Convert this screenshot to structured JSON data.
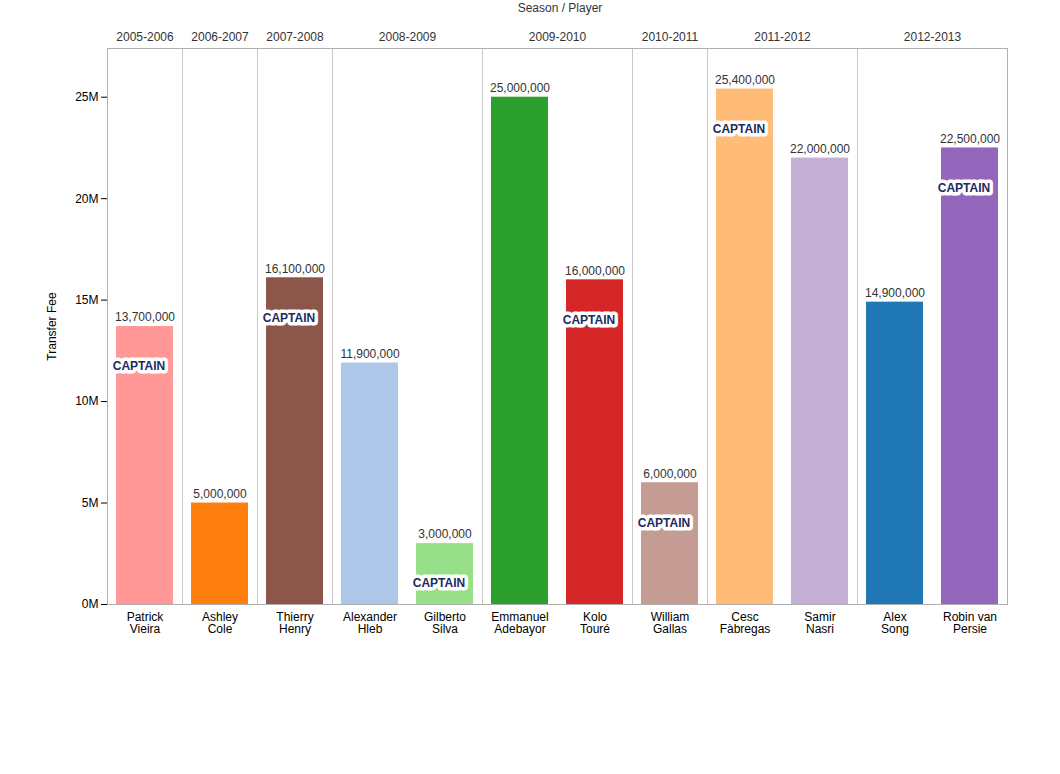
{
  "chart_data": {
    "type": "bar",
    "x_label": "Season / Player",
    "y_label": "Transfer Fee",
    "categories": [
      "Patrick Vieira",
      "Ashley Cole",
      "Thierry Henry",
      "Alexander Hleb",
      "Gilberto Silva",
      "Emmanuel Adebayor",
      "Kolo Touré",
      "William Gallas",
      "Cesc Fàbregas",
      "Samir Nasri",
      "Alex Song",
      "Robin van Persie"
    ],
    "seasons": [
      "2005-2006",
      "2006-2007",
      "2007-2008",
      "2008-2009",
      "2008-2009",
      "2009-2010",
      "2009-2010",
      "2010-2011",
      "2011-2012",
      "2011-2012",
      "2012-2013",
      "2012-2013"
    ],
    "values": [
      13700000,
      5000000,
      16100000,
      11900000,
      3000000,
      25000000,
      16000000,
      6000000,
      25400000,
      22000000,
      14900000,
      22500000
    ],
    "value_labels": [
      "13,700,000",
      "5,000,000",
      "16,100,000",
      "11,900,000",
      "3,000,000",
      "25,000,000",
      "16,000,000",
      "6,000,000",
      "25,400,000",
      "22,000,000",
      "14,900,000",
      "22,500,000"
    ],
    "colors": [
      "#ff9896",
      "#ff7f0e",
      "#8c564b",
      "#aec7e8",
      "#98df8a",
      "#2ca02c",
      "#d62728",
      "#c49c94",
      "#ffbb78",
      "#c5b0d5",
      "#1f77b4",
      "#9467bd"
    ],
    "data_labels": true,
    "annotations": [
      {
        "text": "CAPTAIN",
        "category": "Patrick Vieira"
      },
      {
        "text": "CAPTAIN",
        "category": "Thierry Henry"
      },
      {
        "text": "CAPTAIN",
        "category": "Gilberto Silva"
      },
      {
        "text": "CAPTAIN",
        "category": "Kolo Touré"
      },
      {
        "text": "CAPTAIN",
        "category": "William Gallas"
      },
      {
        "text": "CAPTAIN",
        "category": "Cesc Fàbregas"
      },
      {
        "text": "CAPTAIN",
        "category": "Robin van Persie"
      }
    ],
    "ylim": [
      0,
      27400000
    ],
    "yticks": [
      {
        "value": 0,
        "label": "0M"
      },
      {
        "value": 5000000,
        "label": "5M"
      },
      {
        "value": 10000000,
        "label": "10M"
      },
      {
        "value": 15000000,
        "label": "15M"
      },
      {
        "value": 20000000,
        "label": "20M"
      },
      {
        "value": 25000000,
        "label": "25M"
      }
    ],
    "grid": false
  }
}
